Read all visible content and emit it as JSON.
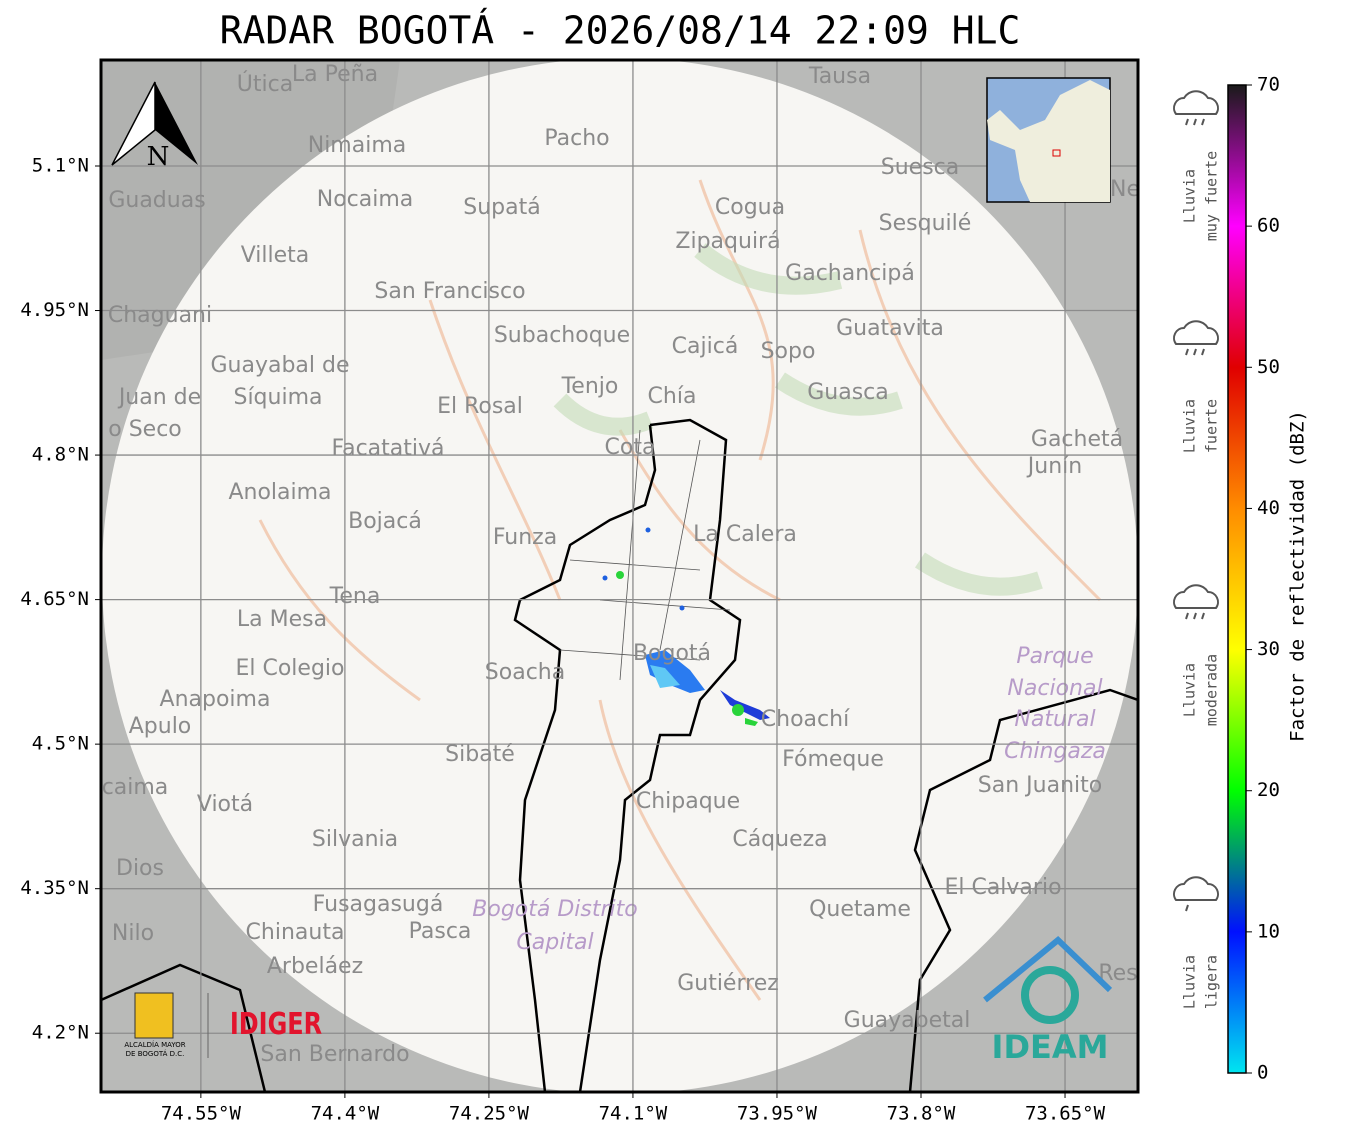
{
  "chart_data": {
    "type": "map",
    "title": "RADAR BOGOTÁ - 2026/08/14 22:09 HLC",
    "xlim": [
      -74.654,
      -73.574
    ],
    "ylim": [
      4.139,
      5.21
    ],
    "grid": true,
    "xticks": [
      {
        "value": -74.55,
        "label": "74.55°W"
      },
      {
        "value": -74.4,
        "label": "74.4°W"
      },
      {
        "value": -74.25,
        "label": "74.25°W"
      },
      {
        "value": -74.1,
        "label": "74.1°W"
      },
      {
        "value": -73.95,
        "label": "73.95°W"
      },
      {
        "value": -73.8,
        "label": "73.8°W"
      },
      {
        "value": -73.65,
        "label": "73.65°W"
      }
    ],
    "yticks": [
      {
        "value": 5.1,
        "label": "5.1°N"
      },
      {
        "value": 4.95,
        "label": "4.95°N"
      },
      {
        "value": 4.8,
        "label": "4.8°N"
      },
      {
        "value": 4.65,
        "label": "4.65°N"
      },
      {
        "value": 4.5,
        "label": "4.5°N"
      },
      {
        "value": 4.35,
        "label": "4.35°N"
      },
      {
        "value": 4.2,
        "label": "4.2°N"
      }
    ],
    "colorbar": {
      "label": "Factor de reflectividad (dBZ)",
      "lim": [
        0,
        70
      ],
      "ticks": [
        0,
        10,
        20,
        30,
        40,
        50,
        60,
        70
      ],
      "colors": [
        "#00e5f0",
        "#0010ff",
        "#00ff00",
        "#ffff00",
        "#ff8c00",
        "#e00000",
        "#ff00ff",
        "#1a1a1a"
      ]
    }
  },
  "legend": [
    {
      "lines": [
        "Lluvia",
        "muy fuerte"
      ]
    },
    {
      "lines": [
        "Lluvia",
        "fuerte"
      ]
    },
    {
      "lines": [
        "Lluvia",
        "moderada"
      ]
    },
    {
      "lines": [
        "Lluvia",
        "ligera"
      ]
    }
  ],
  "north": "N",
  "logos": {
    "alcaldia": [
      "ALCALDÍA MAYOR",
      "DE BOGOTÁ D.C."
    ],
    "idiger": "IDIGER",
    "ideam": "IDEAM"
  },
  "places": [
    {
      "name": "Útica"
    },
    {
      "name": "La Peña"
    },
    {
      "name": "Tausa"
    },
    {
      "name": "Pacho"
    },
    {
      "name": "Nimaima"
    },
    {
      "name": "Guaduas"
    },
    {
      "name": "Nocaima"
    },
    {
      "name": "Supatá"
    },
    {
      "name": "Cogua"
    },
    {
      "name": "Suesca"
    },
    {
      "name": "Sesquilé"
    },
    {
      "name": "Villeta"
    },
    {
      "name": "Zipaquirá"
    },
    {
      "name": "Gachancipá"
    },
    {
      "name": "San Francisco"
    },
    {
      "name": "Chaguani"
    },
    {
      "name": "Guatavita"
    },
    {
      "name": "Subachoque"
    },
    {
      "name": "Cajicá"
    },
    {
      "name": "Sopo"
    },
    {
      "name": "Guayabal de"
    },
    {
      "name": "Síquima"
    },
    {
      "name": "Juan de"
    },
    {
      "name": "o Seco"
    },
    {
      "name": "Tenjo"
    },
    {
      "name": "Chía"
    },
    {
      "name": "Guasca"
    },
    {
      "name": "El Rosal"
    },
    {
      "name": "Facatativá"
    },
    {
      "name": "Cota"
    },
    {
      "name": "Gachetá"
    },
    {
      "name": "Junín"
    },
    {
      "name": "Anolaima"
    },
    {
      "name": "Bojacá"
    },
    {
      "name": "Funza"
    },
    {
      "name": "La Calera"
    },
    {
      "name": "Tena"
    },
    {
      "name": "La Mesa"
    },
    {
      "name": "Bogotá"
    },
    {
      "name": "El Colegio"
    },
    {
      "name": "Soacha"
    },
    {
      "name": "Parque"
    },
    {
      "name": "Nacional"
    },
    {
      "name": "Natural"
    },
    {
      "name": "Chingaza"
    },
    {
      "name": "Anapoima"
    },
    {
      "name": "Apulo"
    },
    {
      "name": "Choachí"
    },
    {
      "name": "Sibaté"
    },
    {
      "name": "Fómeque"
    },
    {
      "name": "San Juanito"
    },
    {
      "name": "caima"
    },
    {
      "name": "Viotá"
    },
    {
      "name": "Chipaque"
    },
    {
      "name": "Silvania"
    },
    {
      "name": "Cáqueza"
    },
    {
      "name": "Dios"
    },
    {
      "name": "El Calvario"
    },
    {
      "name": "Fusagasugá"
    },
    {
      "name": "Bogotá Distrito"
    },
    {
      "name": "Capital"
    },
    {
      "name": "Quetame"
    },
    {
      "name": "Nilo"
    },
    {
      "name": "Chinauta"
    },
    {
      "name": "Pasca"
    },
    {
      "name": "Arbeláez"
    },
    {
      "name": "Gutiérrez"
    },
    {
      "name": "Res"
    },
    {
      "name": "Guayabetal"
    },
    {
      "name": "San Bernardo"
    },
    {
      "name": "Ne"
    }
  ]
}
